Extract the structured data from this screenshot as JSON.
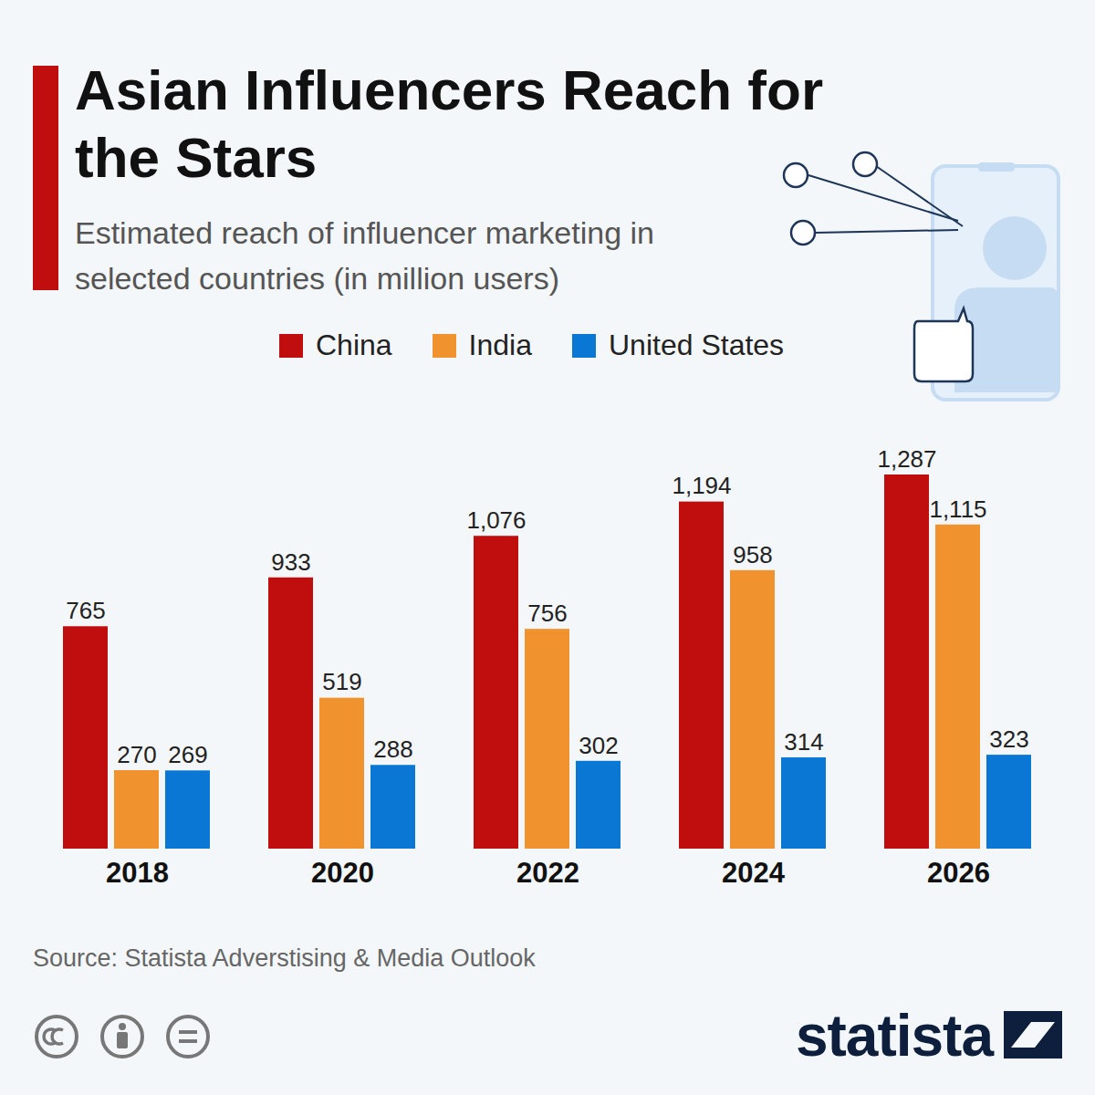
{
  "chart_data": {
    "type": "bar",
    "title": "Asian Influencers Reach for the Stars",
    "subtitle": "Estimated reach of influencer marketing in selected countries (in million users)",
    "categories": [
      "2018",
      "2020",
      "2022",
      "2024",
      "2026"
    ],
    "series": [
      {
        "name": "China",
        "color": "#c00d0d",
        "values": [
          765,
          933,
          1076,
          1194,
          1287
        ],
        "value_labels": [
          "765",
          "933",
          "1,076",
          "1,194",
          "1,287"
        ]
      },
      {
        "name": "India",
        "color": "#f0932f",
        "values": [
          270,
          519,
          756,
          958,
          1115
        ],
        "value_labels": [
          "270",
          "519",
          "756",
          "958",
          "1,115"
        ]
      },
      {
        "name": "United States",
        "color": "#0a77d4",
        "values": [
          269,
          288,
          302,
          314,
          323
        ],
        "value_labels": [
          "269",
          "288",
          "302",
          "314",
          "323"
        ]
      }
    ],
    "legend": "top",
    "data_labels": true,
    "tick_labels": "x",
    "source": "Source: Statista Adverstising & Media Outlook",
    "brand": "statista"
  }
}
